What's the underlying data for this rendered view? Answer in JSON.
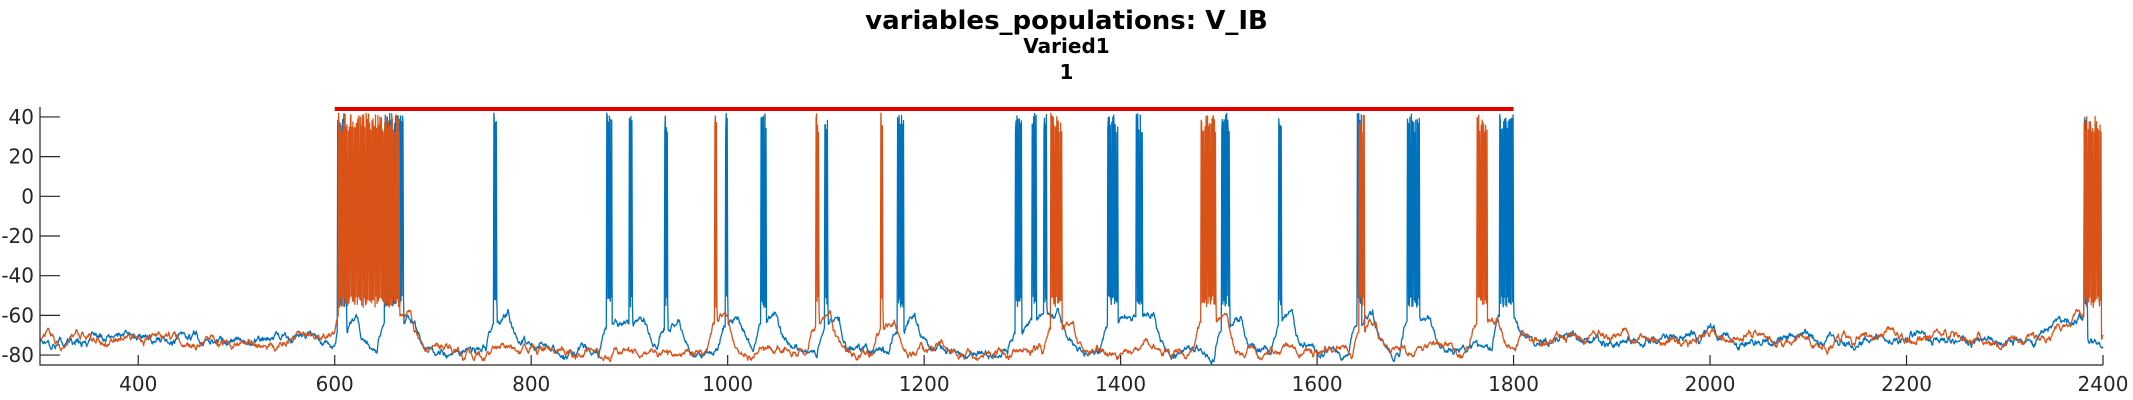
{
  "figure": {
    "title": "variables_populations: V_IB",
    "subtitle": "Varied1",
    "panel_label": "1"
  },
  "chart_data": {
    "type": "line",
    "title": "variables_populations: V_IB",
    "subtitle": "Varied1",
    "xlabel": "",
    "ylabel": "",
    "xlim": [
      300,
      2400
    ],
    "ylim": [
      -85,
      45
    ],
    "xticks": [
      400,
      600,
      800,
      1000,
      1200,
      1400,
      1600,
      1800,
      2000,
      2200,
      2400
    ],
    "yticks": [
      -80,
      -60,
      -40,
      -20,
      0,
      20,
      40
    ],
    "grid": false,
    "colors": {
      "series1": "#0072BD",
      "series2": "#D95319",
      "marker_line": "#E00000"
    },
    "stimulus_bar": {
      "x_start": 600,
      "x_end": 1800,
      "y": 44
    },
    "baseline_mean": -72,
    "series": [
      {
        "color": "#0072BD",
        "spike_bursts": [
          [
            603,
            612
          ],
          [
            651,
            670
          ],
          [
            762,
            765
          ],
          [
            877,
            882
          ],
          [
            900,
            903
          ],
          [
            936,
            939
          ],
          [
            998,
            1000
          ],
          [
            1034,
            1039
          ],
          [
            1099,
            1102
          ],
          [
            1173,
            1179
          ],
          [
            1293,
            1299
          ],
          [
            1310,
            1314
          ],
          [
            1322,
            1325
          ],
          [
            1387,
            1397
          ],
          [
            1416,
            1422
          ],
          [
            1503,
            1511
          ],
          [
            1561,
            1564
          ],
          [
            1641,
            1645
          ],
          [
            1692,
            1704
          ],
          [
            1786,
            1800
          ],
          [
            2381,
            2384
          ]
        ]
      },
      {
        "color": "#D95319",
        "spike_bursts": [
          [
            604,
            666
          ],
          [
            987,
            989
          ],
          [
            1090,
            1093
          ],
          [
            1156,
            1158
          ],
          [
            1329,
            1340
          ],
          [
            1482,
            1497
          ],
          [
            1643,
            1648
          ],
          [
            1763,
            1773
          ],
          [
            2381,
            2398
          ]
        ]
      }
    ]
  }
}
